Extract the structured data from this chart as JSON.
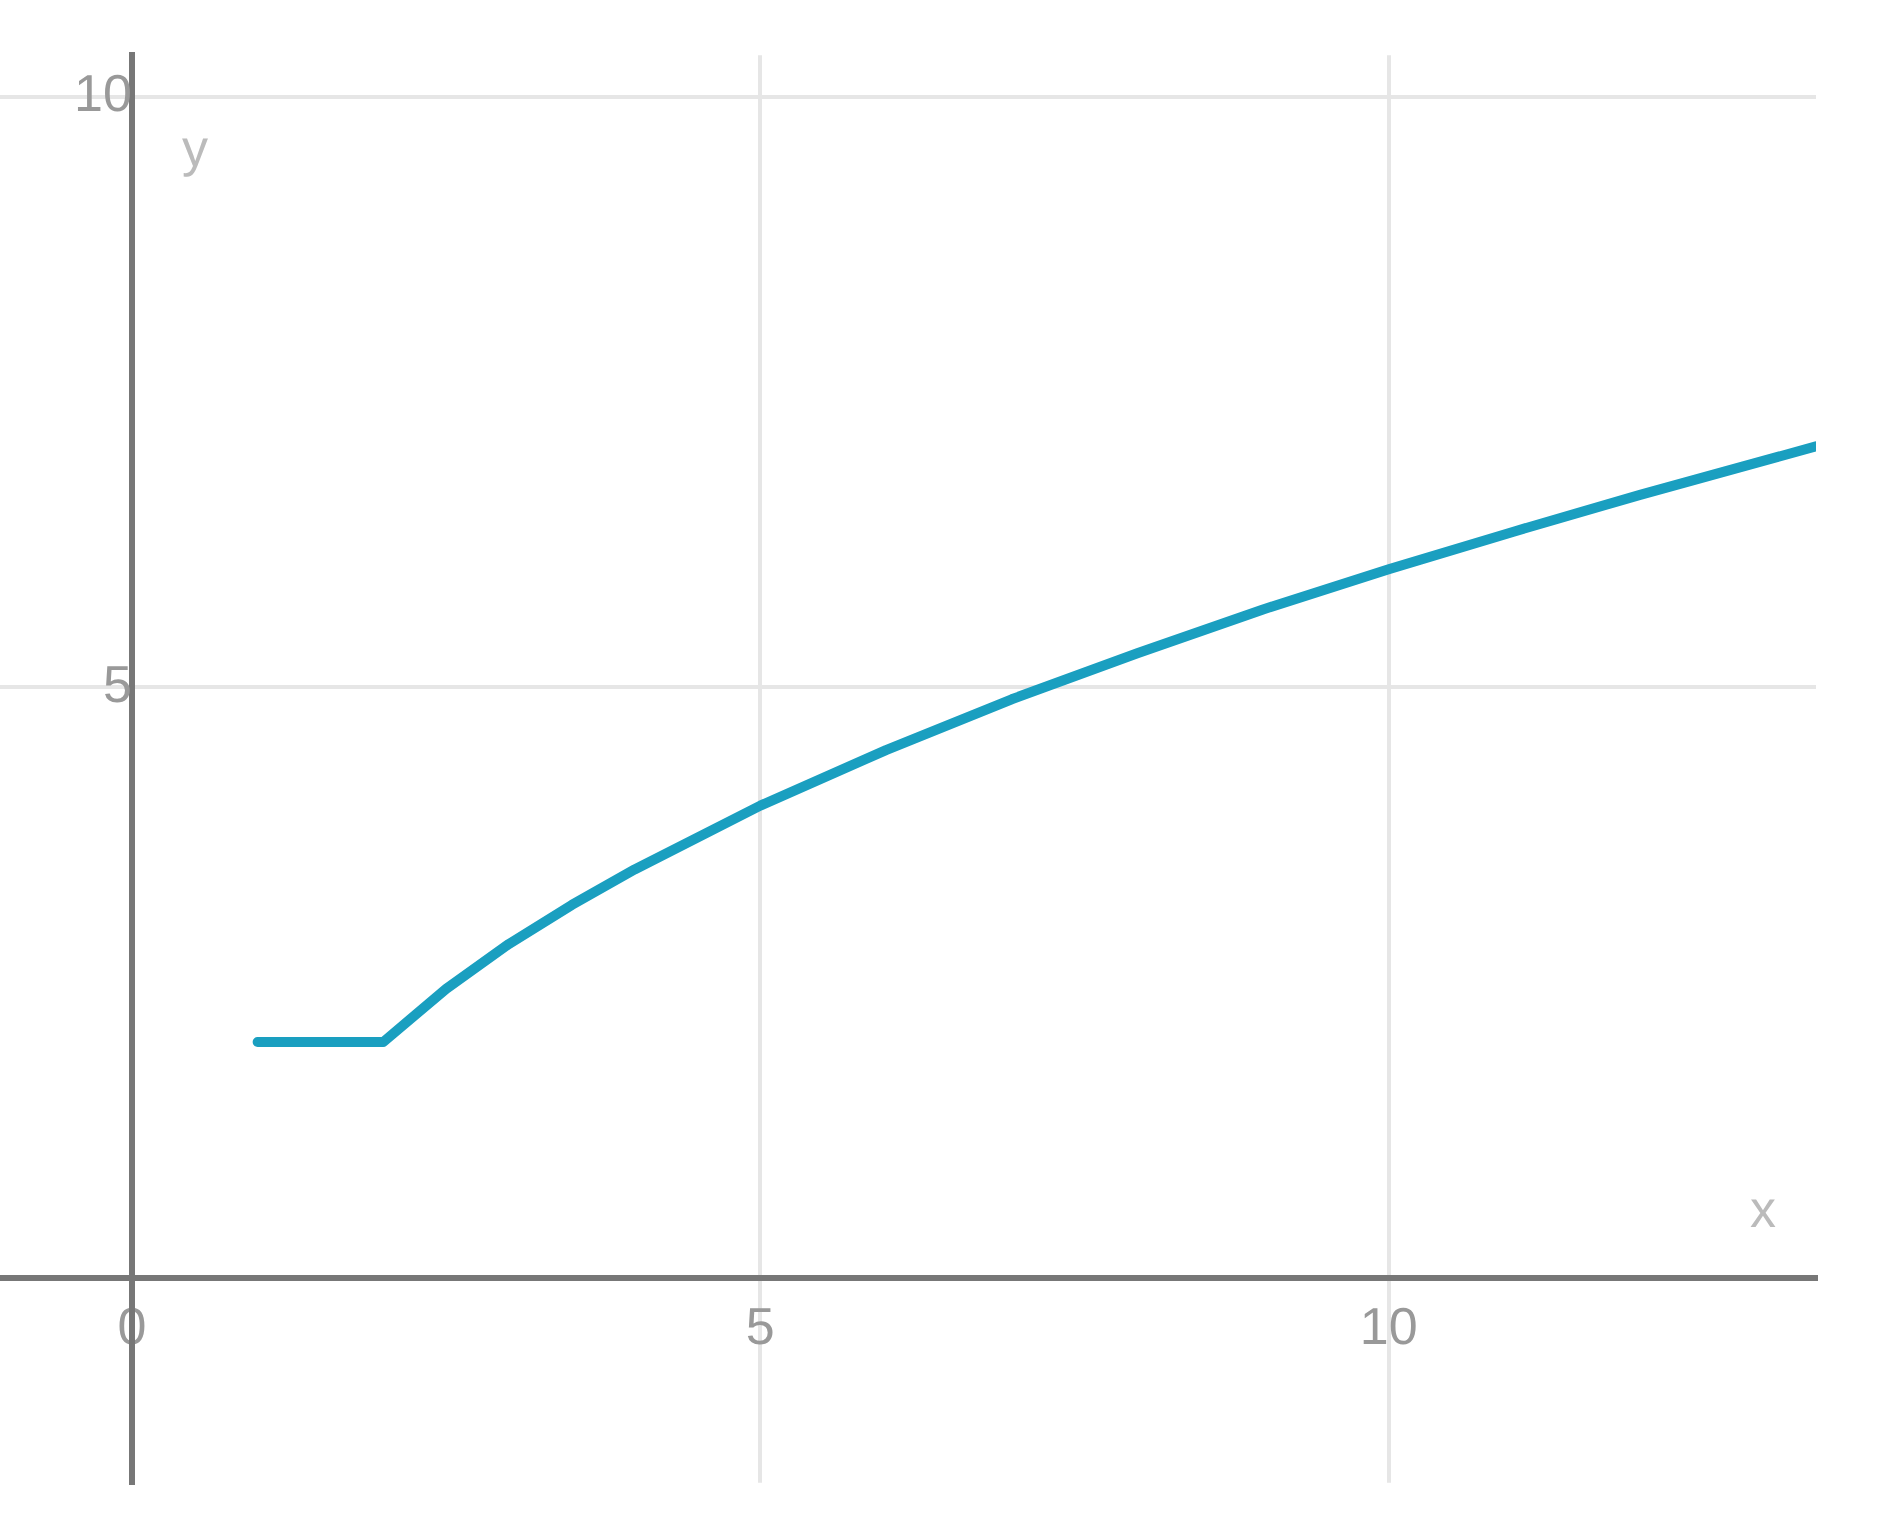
{
  "chart_data": {
    "type": "line",
    "xlabel": "x",
    "ylabel": "y",
    "x": [
      1,
      2,
      2.5,
      3,
      3.5,
      4,
      5,
      6,
      7,
      8,
      9,
      10,
      11,
      12,
      13.4
    ],
    "series": [
      {
        "color": "#1a9fc0",
        "values": [
          2,
          2,
          2.45,
          2.83,
          3.16,
          3.46,
          4,
          4.47,
          4.9,
          5.29,
          5.66,
          6,
          6.32,
          6.63,
          7.04
        ]
      }
    ],
    "xlim": [
      -1.05,
      13.4
    ],
    "ylim": [
      -1.73,
      10.35
    ],
    "xticks": [
      0,
      5,
      10
    ],
    "yticks": [
      5,
      10
    ],
    "grid": true,
    "legend": false,
    "marker": "none",
    "line_style": "solid"
  }
}
